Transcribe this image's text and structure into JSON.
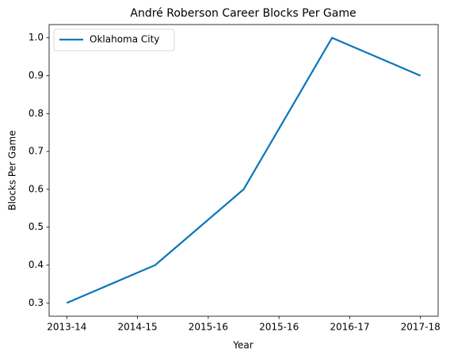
{
  "chart_data": {
    "type": "line",
    "title": "André Roberson Career Blocks Per Game",
    "x_label": "Year",
    "y_label": "Blocks Per Game",
    "x": [
      0,
      1,
      2,
      3,
      4
    ],
    "series": [
      {
        "name": "Oklahoma City",
        "color": "#0a75b8",
        "values": [
          0.3,
          0.4,
          0.6,
          1.0,
          0.9
        ]
      }
    ],
    "xlim": [
      -0.2,
      4.2
    ],
    "xticks": [
      {
        "value": 0,
        "label": "2013-14"
      },
      {
        "value": 0.8,
        "label": "2014-15"
      },
      {
        "value": 1.6,
        "label": "2015-16"
      },
      {
        "value": 2.4,
        "label": "2015-16"
      },
      {
        "value": 3.2,
        "label": "2016-17"
      },
      {
        "value": 4,
        "label": "2017-18"
      }
    ],
    "ylim": [
      0.265,
      1.035
    ],
    "yticks": [
      0.3,
      0.4,
      0.5,
      0.6,
      0.7,
      0.8,
      0.9,
      {
        "value": 1,
        "label": "1.0"
      }
    ],
    "legend": "upper left",
    "grid": false
  }
}
